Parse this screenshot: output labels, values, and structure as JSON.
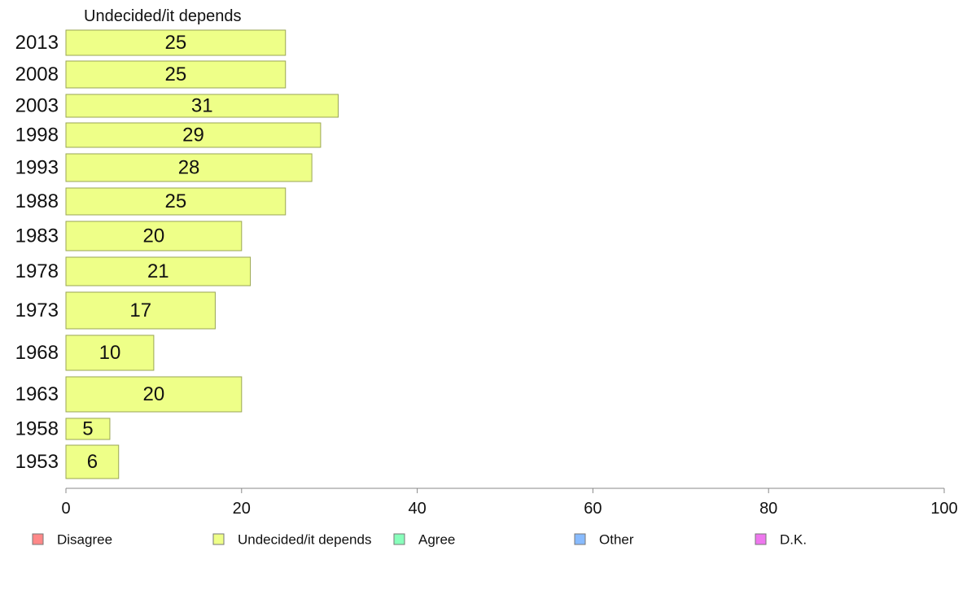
{
  "chart_data": {
    "type": "bar",
    "orientation": "horizontal",
    "title": "Undecided/it depends",
    "categories": [
      "2013",
      "2008",
      "2003",
      "1998",
      "1993",
      "1988",
      "1983",
      "1978",
      "1973",
      "1968",
      "1963",
      "1958",
      "1953"
    ],
    "series": [
      {
        "name": "Undecided/it depends",
        "values": [
          25,
          25,
          31,
          29,
          28,
          25,
          20,
          21,
          17,
          10,
          20,
          5,
          6
        ],
        "color": "#eeff88"
      }
    ],
    "xlim": [
      0,
      100
    ],
    "xticks": [
      0,
      20,
      40,
      60,
      80,
      100
    ],
    "legend": [
      {
        "label": "Disagree",
        "color": "#ff8888"
      },
      {
        "label": "Undecided/it depends",
        "color": "#eeff88"
      },
      {
        "label": "Agree",
        "color": "#88ffbb"
      },
      {
        "label": "Other",
        "color": "#88bbff"
      },
      {
        "label": "D.K.",
        "color": "#ee77ee"
      }
    ],
    "legend_position": "bottom",
    "grid": false
  }
}
